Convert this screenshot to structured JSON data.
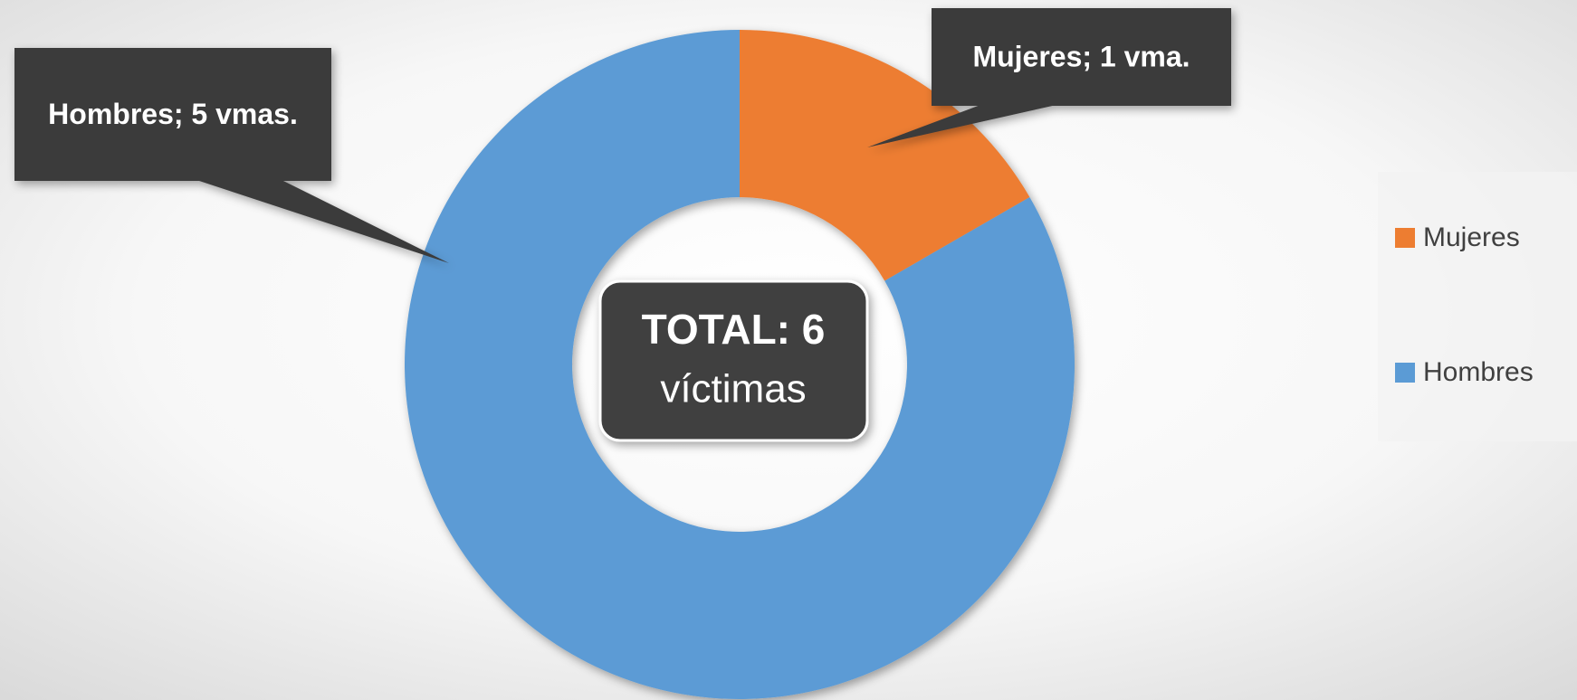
{
  "chart_data": {
    "type": "donut",
    "categories": [
      "Mujeres",
      "Hombres"
    ],
    "values": [
      1,
      5
    ],
    "value_labels": [
      "Mujeres; 1 vma.",
      "Hombres; 5 vmas."
    ],
    "colors": [
      "#ed7d31",
      "#5b9bd5"
    ],
    "center_label": [
      "TOTAL: 6",
      "víctimas"
    ],
    "legend": "right"
  }
}
